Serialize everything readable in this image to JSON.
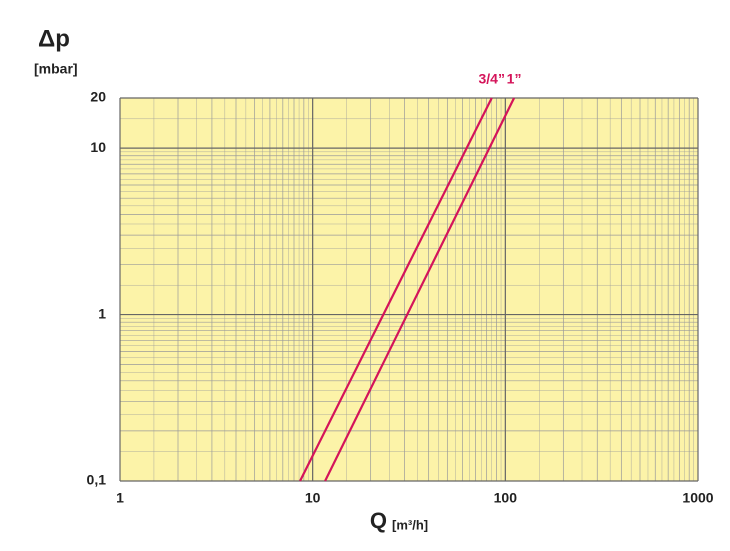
{
  "chart_data": {
    "type": "line",
    "y_label": "Δp",
    "y_unit": "[mbar]",
    "x_label": "Q",
    "x_unit": "[m³/h]",
    "log_x": true,
    "log_y": true,
    "grid": true,
    "minor_grid": true,
    "background": "#fcf3a8",
    "xlim": [
      1,
      1000
    ],
    "xticks": [
      1,
      10,
      100,
      1000
    ],
    "ylim": [
      0.1,
      20
    ],
    "yticks": [
      {
        "value": 0.1,
        "label": "0,1"
      },
      1,
      10,
      20
    ],
    "series": [
      {
        "name": "3/4”",
        "color": "#d4145a",
        "x": [
          8.6,
          85
        ],
        "values": [
          0.1,
          20
        ]
      },
      {
        "name": "1”",
        "color": "#d4145a",
        "x": [
          11.6,
          111
        ],
        "values": [
          0.1,
          20
        ]
      }
    ]
  }
}
